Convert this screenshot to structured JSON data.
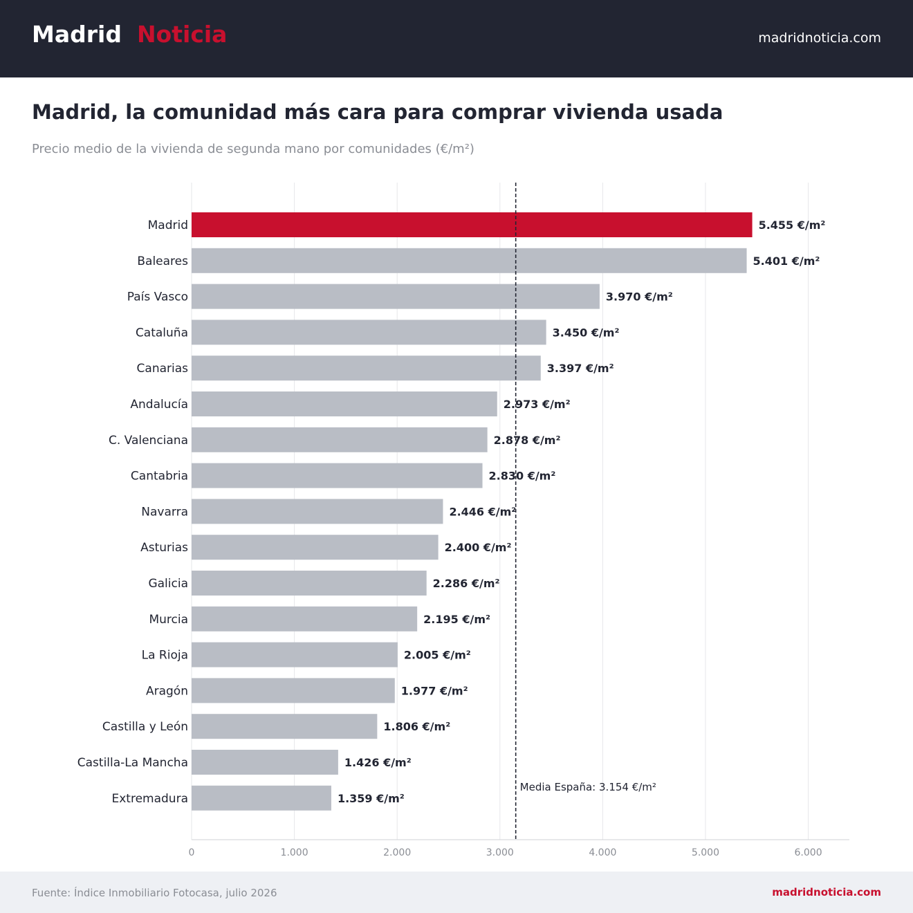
{
  "header": {
    "brand_part1": "Madrid",
    "brand_part2": "Noticia",
    "site": "madridnoticia.com"
  },
  "colors": {
    "header_bg": "#222532",
    "highlight": "#c8102e",
    "bar": "#b9bdc5",
    "text": "#222532",
    "muted": "#8a8d94",
    "footer_bg": "#eef0f4"
  },
  "chart_data": {
    "type": "bar",
    "orientation": "horizontal",
    "title": "Madrid, la comunidad más cara para comprar vivienda usada",
    "subtitle": "Precio medio de la vivienda de segunda mano por comunidades (€/m²)",
    "categories": [
      "Madrid",
      "Baleares",
      "País Vasco",
      "Cataluña",
      "Canarias",
      "Andalucía",
      "C. Valenciana",
      "Cantabria",
      "Navarra",
      "Asturias",
      "Galicia",
      "Murcia",
      "La Rioja",
      "Aragón",
      "Castilla y León",
      "Castilla-La Mancha",
      "Extremadura"
    ],
    "values": [
      5455,
      5401,
      3970,
      3450,
      3397,
      2973,
      2878,
      2830,
      2446,
      2400,
      2286,
      2195,
      2005,
      1977,
      1806,
      1426,
      1359
    ],
    "value_labels": [
      "5.455 €/m²",
      "5.401 €/m²",
      "3.970 €/m²",
      "3.450 €/m²",
      "3.397 €/m²",
      "2.973 €/m²",
      "2.878 €/m²",
      "2.830 €/m²",
      "2.446 €/m²",
      "2.400 €/m²",
      "2.286 €/m²",
      "2.195 €/m²",
      "2.005 €/m²",
      "1.977 €/m²",
      "1.806 €/m²",
      "1.426 €/m²",
      "1.359 €/m²"
    ],
    "highlight_category": "Madrid",
    "xlim": [
      0,
      6400
    ],
    "xticks": [
      0,
      1000,
      2000,
      3000,
      4000,
      5000,
      6000
    ],
    "xtick_labels": [
      "0",
      "1.000",
      "2.000",
      "3.000",
      "4.000",
      "5.000",
      "6.000"
    ],
    "grid": true,
    "reference_line": {
      "value": 3154,
      "label": "Media España: 3.154 €/m²",
      "style": "dashed"
    }
  },
  "footer": {
    "source": "Fuente: Índice Inmobiliario Fotocasa, julio 2026",
    "site": "madridnoticia.com"
  }
}
